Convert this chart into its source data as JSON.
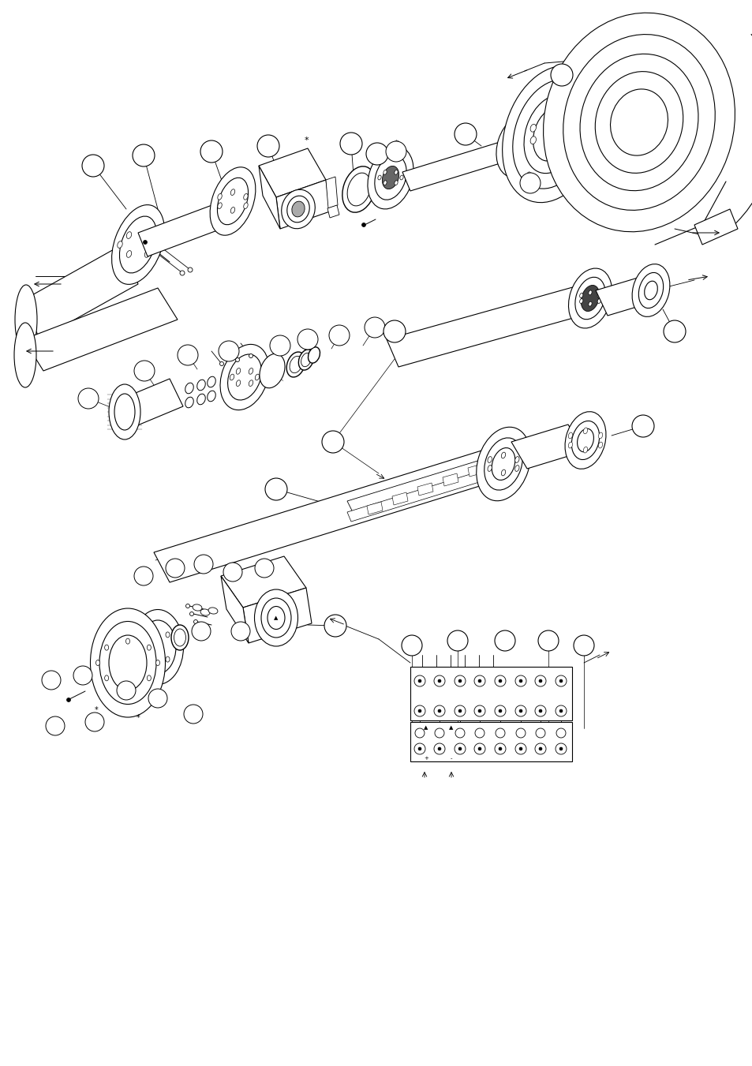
{
  "bg_color": "#ffffff",
  "line_color": "#000000",
  "line_width": 0.8,
  "fig_width": 9.54,
  "fig_height": 13.51,
  "dpi": 100
}
